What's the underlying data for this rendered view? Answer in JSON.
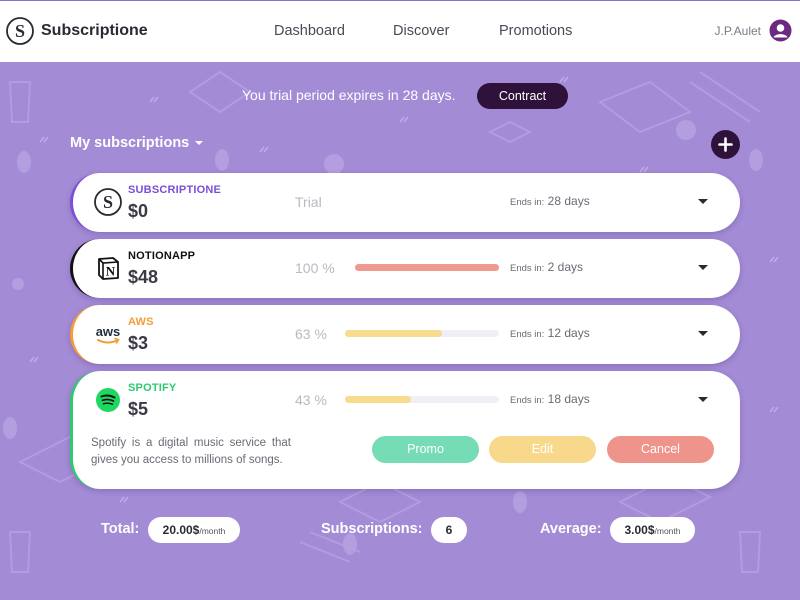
{
  "header": {
    "brand": "Subscriptione",
    "nav": [
      "Dashboard",
      "Discover",
      "Promotions"
    ],
    "user": "J.P.Aulet"
  },
  "banner": {
    "text": "You trial period expires in 28 days.",
    "button": "Contract"
  },
  "section": {
    "title": "My subscriptions"
  },
  "subscriptions": [
    {
      "name": "SUBSCRIPTIONE",
      "price": "$0",
      "status": "Trial",
      "ends_label": "Ends in:",
      "ends_value": "28 days",
      "name_color": "#7b4fd6",
      "accent": "#7b4fd6"
    },
    {
      "name": "NOTIONAPP",
      "price": "$48",
      "percent": "100 %",
      "progress": 1.0,
      "bar_color": "#ef9a8f",
      "ends_label": "Ends in:",
      "ends_value": "2 days",
      "name_color": "#111111",
      "accent": "#111111"
    },
    {
      "name": "AWS",
      "price": "$3",
      "percent": "63 %",
      "progress": 0.63,
      "bar_color": "#f7dc8e",
      "ends_label": "Ends in:",
      "ends_value": "12 days",
      "name_color": "#f29d38",
      "accent": "#f29d38"
    },
    {
      "name": "SPOTIFY",
      "price": "$5",
      "percent": "43 %",
      "progress": 0.43,
      "bar_color": "#f7dc8e",
      "ends_label": "Ends in:",
      "ends_value": "18 days",
      "name_color": "#2ec971",
      "accent": "#2ec971",
      "description": "Spotify is a digital music service that gives you access to millions of songs.",
      "actions": [
        "Promo",
        "Edit",
        "Cancel"
      ]
    }
  ],
  "footer": {
    "total_label": "Total:",
    "total_value": "20.00$",
    "total_unit": "/month",
    "subs_label": "Subscriptions:",
    "subs_value": "6",
    "avg_label": "Average:",
    "avg_value": "3.00$",
    "avg_unit": "/month"
  },
  "icons": {
    "brand": "subscriptione-logo-icon",
    "user": "user-avatar-icon",
    "add": "plus-icon",
    "notion": "notion-logo-icon",
    "aws": "aws-logo-icon",
    "spotify": "spotify-logo-icon"
  },
  "colors": {
    "background": "#a48bd6",
    "dark_accent": "#2f1239",
    "promo": "#75dcb6",
    "edit": "#f8d98b",
    "cancel": "#ee948a"
  }
}
